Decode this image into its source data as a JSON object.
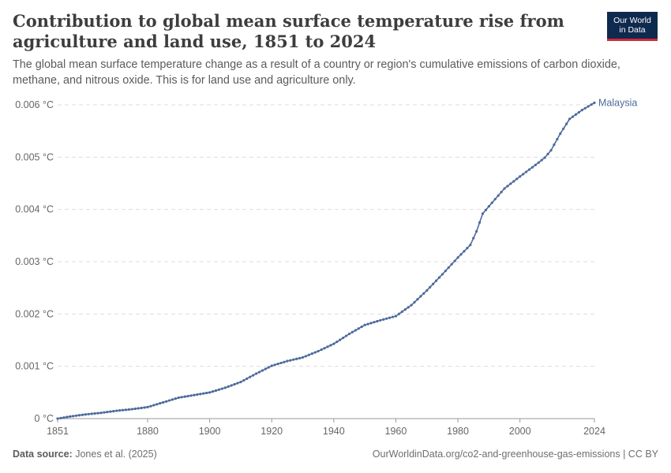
{
  "header": {
    "title": "Contribution to global mean surface temperature rise from agriculture and land use, 1851 to 2024",
    "subtitle": "The global mean surface temperature change as a result of a country or region's cumulative emissions of carbon dioxide, methane, and nitrous oxide. This is for land use and agriculture only."
  },
  "logo": {
    "line1": "Our World",
    "line2": "in Data"
  },
  "footer": {
    "source_label": "Data source:",
    "source_value": "Jones et al. (2025)",
    "url": "OurWorldinData.org/co2-and-greenhouse-gas-emissions | CC BY"
  },
  "colors": {
    "series": "#4c6a9c",
    "grid": "#dddddd",
    "axis": "#999999"
  },
  "chart_data": {
    "type": "line",
    "title": "Contribution to global mean surface temperature rise from agriculture and land use, 1851 to 2024",
    "xlabel": "",
    "ylabel": "",
    "xlim": [
      1851,
      2024
    ],
    "ylim": [
      0,
      0.006
    ],
    "x_ticks": [
      1851,
      1880,
      1900,
      1920,
      1940,
      1960,
      1980,
      2000,
      2024
    ],
    "x_tick_labels": [
      "1851",
      "1880",
      "1900",
      "1920",
      "1940",
      "1960",
      "1980",
      "2000",
      "2024"
    ],
    "y_ticks": [
      0,
      0.001,
      0.002,
      0.003,
      0.004,
      0.005,
      0.006
    ],
    "y_tick_labels": [
      "0 °C",
      "0.001 °C",
      "0.002 °C",
      "0.003 °C",
      "0.004 °C",
      "0.005 °C",
      "0.006 °C"
    ],
    "grid": "horizontal dashed",
    "legend": "label at line end (right)",
    "series": [
      {
        "name": "Malaysia",
        "points": [
          [
            1851,
            0.0
          ],
          [
            1855,
            4e-05
          ],
          [
            1860,
            8e-05
          ],
          [
            1865,
            0.00011
          ],
          [
            1870,
            0.00015
          ],
          [
            1875,
            0.00018
          ],
          [
            1880,
            0.00022
          ],
          [
            1885,
            0.00031
          ],
          [
            1890,
            0.0004
          ],
          [
            1895,
            0.00045
          ],
          [
            1900,
            0.0005
          ],
          [
            1905,
            0.00059
          ],
          [
            1910,
            0.0007
          ],
          [
            1915,
            0.00086
          ],
          [
            1920,
            0.00101
          ],
          [
            1925,
            0.0011
          ],
          [
            1930,
            0.00117
          ],
          [
            1935,
            0.00129
          ],
          [
            1940,
            0.00143
          ],
          [
            1945,
            0.00162
          ],
          [
            1950,
            0.00179
          ],
          [
            1955,
            0.00188
          ],
          [
            1960,
            0.00196
          ],
          [
            1965,
            0.00217
          ],
          [
            1970,
            0.00245
          ],
          [
            1975,
            0.00276
          ],
          [
            1980,
            0.00308
          ],
          [
            1984,
            0.00332
          ],
          [
            1986,
            0.00358
          ],
          [
            1988,
            0.00392
          ],
          [
            1990,
            0.00406
          ],
          [
            1995,
            0.0044
          ],
          [
            2000,
            0.00463
          ],
          [
            2005,
            0.00485
          ],
          [
            2008,
            0.00499
          ],
          [
            2010,
            0.00513
          ],
          [
            2013,
            0.00545
          ],
          [
            2016,
            0.00573
          ],
          [
            2020,
            0.0059
          ],
          [
            2024,
            0.00604
          ]
        ]
      }
    ]
  }
}
